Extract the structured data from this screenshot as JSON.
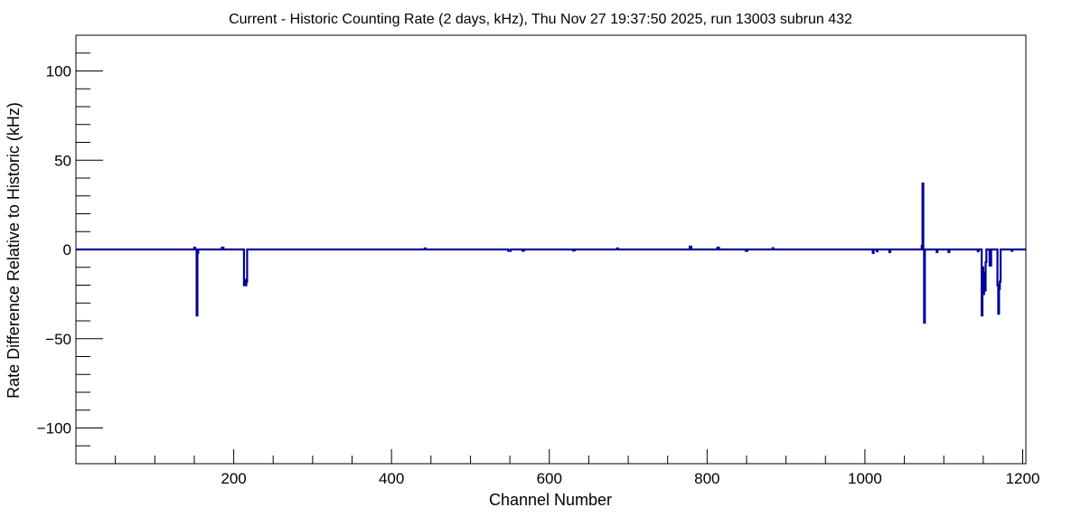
{
  "chart_data": {
    "type": "line",
    "title": "Current - Historic Counting Rate (2 days, kHz), Thu Nov 27 19:37:50 2025, run 13003 subrun 432",
    "xlabel": "Channel Number",
    "ylabel": "Rate Difference Relative to Historic (kHz)",
    "xlim": [
      0,
      1204
    ],
    "ylim": [
      -120,
      120
    ],
    "x_ticks": [
      200,
      400,
      600,
      800,
      1000,
      1200
    ],
    "x_tick_labels": [
      "200",
      "400",
      "600",
      "800",
      "1000",
      "1200"
    ],
    "y_ticks": [
      -100,
      -50,
      0,
      50,
      100
    ],
    "y_tick_labels": [
      "−100",
      "−50",
      "0",
      "50",
      "100"
    ],
    "grid": false,
    "line_color": "#000099",
    "series": [
      {
        "points": [
          [
            0,
            0
          ],
          [
            150,
            0
          ],
          [
            150,
            1
          ],
          [
            151,
            1
          ],
          [
            151,
            0
          ],
          [
            153,
            0
          ],
          [
            153,
            -37
          ],
          [
            154,
            -37
          ],
          [
            154,
            -2
          ],
          [
            155,
            -2
          ],
          [
            155,
            0
          ],
          [
            185,
            0
          ],
          [
            185,
            1
          ],
          [
            187,
            1
          ],
          [
            187,
            0
          ],
          [
            213,
            0
          ],
          [
            213,
            -20
          ],
          [
            214,
            -20
          ],
          [
            214,
            -17
          ],
          [
            215,
            -17
          ],
          [
            215,
            -20
          ],
          [
            216,
            -20
          ],
          [
            216,
            -18
          ],
          [
            217,
            -18
          ],
          [
            217,
            0
          ],
          [
            442,
            0
          ],
          [
            442,
            0.6
          ],
          [
            443,
            0.6
          ],
          [
            443,
            0
          ],
          [
            548,
            0
          ],
          [
            548,
            -0.8
          ],
          [
            551,
            -0.8
          ],
          [
            551,
            0
          ],
          [
            566,
            0
          ],
          [
            566,
            -0.7
          ],
          [
            568,
            -0.7
          ],
          [
            568,
            0
          ],
          [
            630,
            0
          ],
          [
            630,
            -0.6
          ],
          [
            632,
            -0.6
          ],
          [
            632,
            0
          ],
          [
            686,
            0
          ],
          [
            686,
            0.6
          ],
          [
            687,
            0.6
          ],
          [
            687,
            0
          ],
          [
            778,
            0
          ],
          [
            778,
            1.6
          ],
          [
            780,
            1.6
          ],
          [
            780,
            0
          ],
          [
            813,
            0
          ],
          [
            813,
            1
          ],
          [
            815,
            1
          ],
          [
            815,
            0
          ],
          [
            849,
            0
          ],
          [
            849,
            -0.8
          ],
          [
            851,
            -0.8
          ],
          [
            851,
            0
          ],
          [
            883,
            0
          ],
          [
            883,
            0.7
          ],
          [
            884,
            0.7
          ],
          [
            884,
            0
          ],
          [
            1010,
            0
          ],
          [
            1010,
            -2
          ],
          [
            1011,
            -2
          ],
          [
            1011,
            0
          ],
          [
            1015,
            0
          ],
          [
            1015,
            -1
          ],
          [
            1016,
            -1
          ],
          [
            1016,
            0
          ],
          [
            1031,
            0
          ],
          [
            1031,
            -1.5
          ],
          [
            1032,
            -1.5
          ],
          [
            1032,
            0
          ],
          [
            1072,
            0
          ],
          [
            1072,
            2
          ],
          [
            1073,
            2
          ],
          [
            1073,
            37
          ],
          [
            1074,
            37
          ],
          [
            1074,
            0
          ],
          [
            1075,
            0
          ],
          [
            1075,
            -41
          ],
          [
            1076,
            -41
          ],
          [
            1076,
            0
          ],
          [
            1091,
            0
          ],
          [
            1091,
            -1.5
          ],
          [
            1092,
            -1.5
          ],
          [
            1092,
            0
          ],
          [
            1106,
            0
          ],
          [
            1106,
            -1.5
          ],
          [
            1107,
            -1.5
          ],
          [
            1107,
            0
          ],
          [
            1143,
            0
          ],
          [
            1143,
            -1
          ],
          [
            1144,
            -1
          ],
          [
            1144,
            0
          ],
          [
            1148,
            0
          ],
          [
            1148,
            -37
          ],
          [
            1149,
            -37
          ],
          [
            1149,
            -10
          ],
          [
            1150,
            -10
          ],
          [
            1150,
            -25
          ],
          [
            1151,
            -25
          ],
          [
            1151,
            -13
          ],
          [
            1152,
            -13
          ],
          [
            1152,
            -23
          ],
          [
            1153,
            -23
          ],
          [
            1153,
            -7
          ],
          [
            1154,
            -7
          ],
          [
            1154,
            0
          ],
          [
            1158,
            0
          ],
          [
            1158,
            -9
          ],
          [
            1160,
            -9
          ],
          [
            1160,
            0
          ],
          [
            1168,
            0
          ],
          [
            1168,
            -20
          ],
          [
            1169,
            -20
          ],
          [
            1169,
            -36
          ],
          [
            1170,
            -36
          ],
          [
            1170,
            -22
          ],
          [
            1171,
            -22
          ],
          [
            1171,
            -18
          ],
          [
            1172,
            -18
          ],
          [
            1172,
            0
          ],
          [
            1186,
            0
          ],
          [
            1186,
            -0.8
          ],
          [
            1187,
            -0.8
          ],
          [
            1187,
            0
          ],
          [
            1204,
            0
          ]
        ]
      }
    ]
  }
}
